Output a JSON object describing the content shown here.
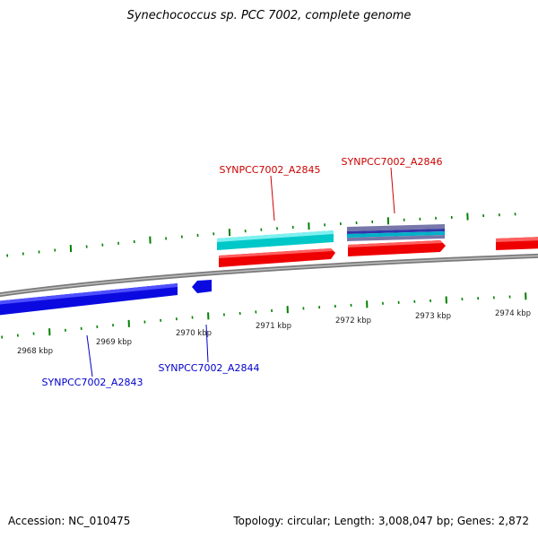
{
  "title": "Synechococcus sp. PCC 7002, complete genome",
  "footer": {
    "accession_label": "Accession:",
    "accession": "NC_010475",
    "topology_label": "Topology:",
    "topology": "circular",
    "length_label": "Length:",
    "length": "3,008,047 bp",
    "genes_label": "Genes:",
    "genes": "2,872"
  },
  "scale_labels": [
    "2968 kbp",
    "2969 kbp",
    "2970 kbp",
    "2971 kbp",
    "2972 kbp",
    "2973 kbp",
    "2974 kbp"
  ],
  "gene_labels": {
    "a2843": "SYNPCC7002_A2843",
    "a2844": "SYNPCC7002_A2844",
    "a2845": "SYNPCC7002_A2845",
    "a2846": "SYNPCC7002_A2846"
  },
  "colors": {
    "forward_strand": "#ff0000",
    "reverse_strand": "#0000ee",
    "forward_label": "#cc0000",
    "reverse_label": "#0000cc",
    "tick": "#008000",
    "backbone": "#888888",
    "cyan_feature": "#00c8c8",
    "purple_feature": "#7777aa"
  }
}
